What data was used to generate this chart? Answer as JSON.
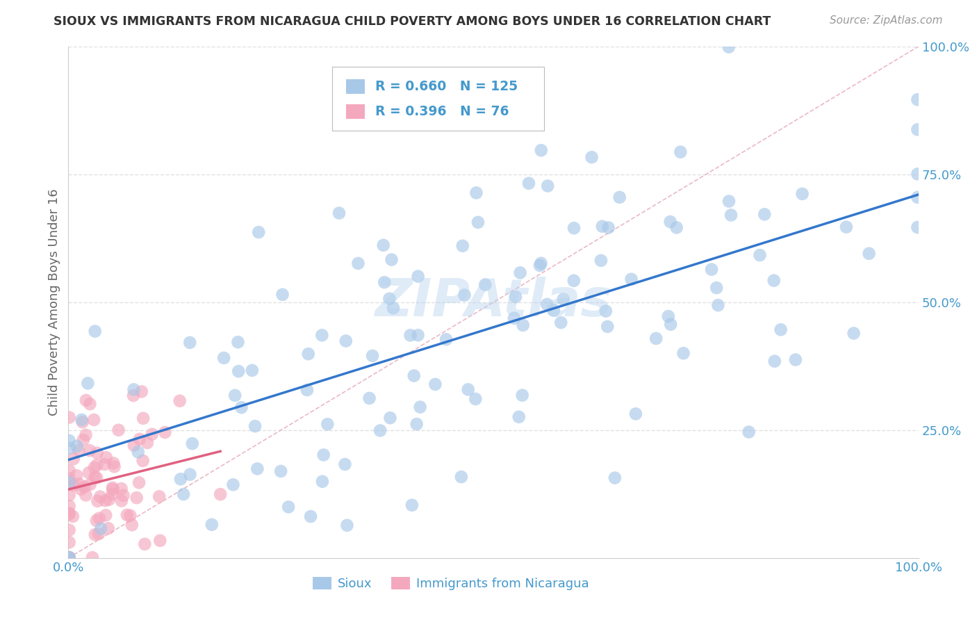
{
  "title": "SIOUX VS IMMIGRANTS FROM NICARAGUA CHILD POVERTY AMONG BOYS UNDER 16 CORRELATION CHART",
  "source": "Source: ZipAtlas.com",
  "ylabel": "Child Poverty Among Boys Under 16",
  "sioux_R": 0.66,
  "sioux_N": 125,
  "nicaragua_R": 0.396,
  "nicaragua_N": 76,
  "sioux_color": "#a8c8e8",
  "nicaragua_color": "#f4a8be",
  "sioux_line_color": "#3377cc",
  "nicaragua_line_color": "#e06080",
  "diagonal_color": "#e8b0c0",
  "background_color": "#ffffff",
  "grid_color": "#dddddd",
  "tick_label_color": "#4499cc",
  "title_color": "#333333",
  "ylabel_color": "#666666",
  "xlim": [
    0,
    1
  ],
  "ylim": [
    0,
    1
  ],
  "ytick_positions": [
    0.25,
    0.5,
    0.75,
    1.0
  ],
  "ytick_labels": [
    "25.0%",
    "50.0%",
    "75.0%",
    "100.0%"
  ]
}
